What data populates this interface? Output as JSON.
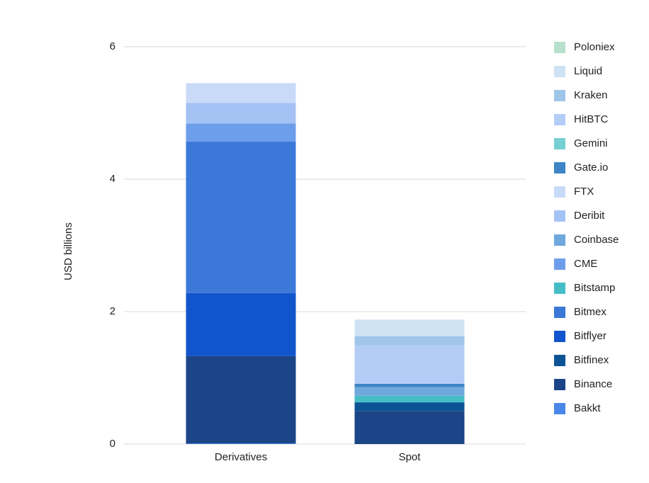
{
  "chart_data": {
    "type": "stacked_bar",
    "y_label": "USD billions",
    "categories": [
      "Derivatives",
      "Spot"
    ],
    "ylim": [
      0,
      6
    ],
    "yticks": [
      0,
      2,
      4,
      6
    ],
    "grid": true,
    "series": [
      {
        "name": "Bakkt",
        "color": "#4a86e8",
        "values": [
          0.01,
          0
        ]
      },
      {
        "name": "Binance",
        "color": "#1c4587",
        "values": [
          1.32,
          0.5
        ]
      },
      {
        "name": "Bitfinex",
        "color": "#0b5394",
        "values": [
          0,
          0.13
        ]
      },
      {
        "name": "Bitflyer",
        "color": "#1155cc",
        "values": [
          0.95,
          0
        ]
      },
      {
        "name": "Bitmex",
        "color": "#3c78d8",
        "values": [
          2.29,
          0
        ]
      },
      {
        "name": "Bitstamp",
        "color": "#46bdc6",
        "values": [
          0,
          0.1
        ]
      },
      {
        "name": "CME",
        "color": "#6d9eeb",
        "values": [
          0.27,
          0
        ]
      },
      {
        "name": "Coinbase",
        "color": "#6fa8dc",
        "values": [
          0,
          0.13
        ]
      },
      {
        "name": "Deribit",
        "color": "#a4c2f4",
        "values": [
          0.31,
          0
        ]
      },
      {
        "name": "FTX",
        "color": "#c9daf8",
        "values": [
          0.3,
          0
        ]
      },
      {
        "name": "Gate.io",
        "color": "#3d85c6",
        "values": [
          0,
          0.05
        ]
      },
      {
        "name": "Gemini",
        "color": "#76cfd2",
        "values": [
          0,
          0
        ]
      },
      {
        "name": "HitBTC",
        "color": "#b4cdf7",
        "values": [
          0,
          0.58
        ]
      },
      {
        "name": "Kraken",
        "color": "#9fc5e8",
        "values": [
          0,
          0.14
        ]
      },
      {
        "name": "Liquid",
        "color": "#cfe2f3",
        "values": [
          0,
          0.25
        ]
      },
      {
        "name": "Poloniex",
        "color": "#b7e1cd",
        "values": [
          0,
          0
        ]
      }
    ]
  }
}
